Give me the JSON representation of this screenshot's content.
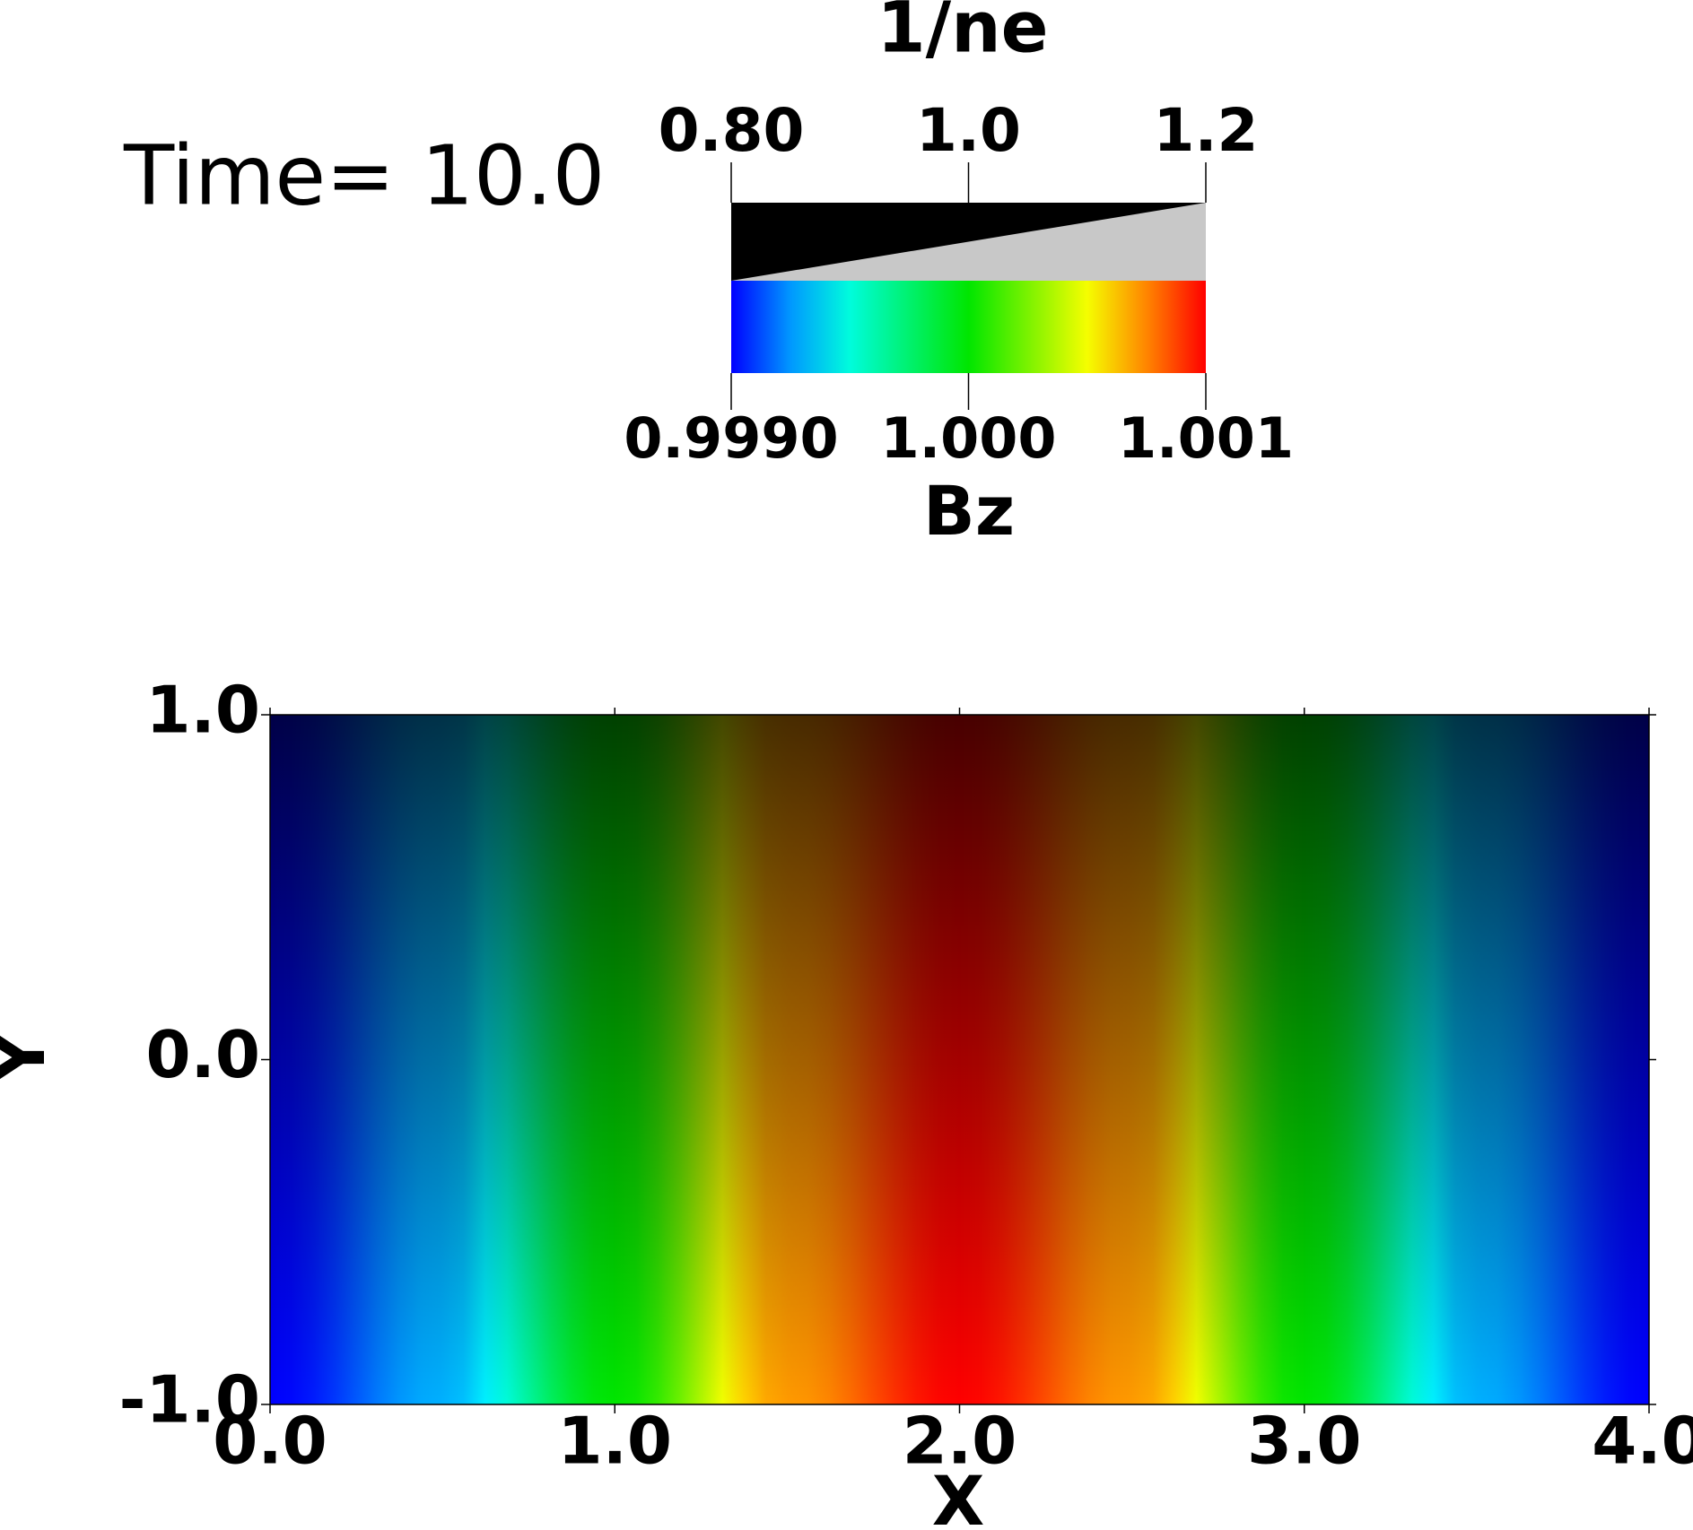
{
  "chart_data": {
    "type": "heatmap",
    "time_label": "Time= 10.0",
    "opacity_bar": {
      "title": "1/ne",
      "lim": [
        0.8,
        1.2
      ],
      "ticks": [
        {
          "value": 0.8,
          "label": "0.80"
        },
        {
          "value": 1.0,
          "label": "1.0"
        },
        {
          "value": 1.2,
          "label": "1.2"
        }
      ]
    },
    "color_bar": {
      "title": "Bz",
      "lim": [
        0.999,
        1.001
      ],
      "ticks": [
        {
          "value": 0.999,
          "label": "0.9990"
        },
        {
          "value": 1.0,
          "label": "1.000"
        },
        1.001
      ]
    },
    "xlabel": "X",
    "ylabel": "Y",
    "xlim": [
      0,
      4
    ],
    "ylim": [
      -1,
      1
    ],
    "xticks": [
      {
        "value": 0,
        "label": "0.0"
      },
      {
        "value": 1,
        "label": "1.0"
      },
      {
        "value": 2,
        "label": "2.0"
      },
      {
        "value": 3,
        "label": "3.0"
      },
      {
        "value": 4,
        "label": "4.0"
      }
    ],
    "yticks": [
      {
        "value": -1,
        "label": "-1.0"
      },
      {
        "value": 0,
        "label": "0.0"
      },
      {
        "value": 1,
        "label": "1.0"
      }
    ],
    "x": [
      0,
      0.5,
      1,
      1.5,
      2,
      2.5,
      3,
      3.5,
      4
    ],
    "values": [
      0.999,
      0.99929,
      1.0,
      1.00071,
      1.001,
      1.00071,
      1.0,
      0.99929,
      0.999
    ]
  }
}
